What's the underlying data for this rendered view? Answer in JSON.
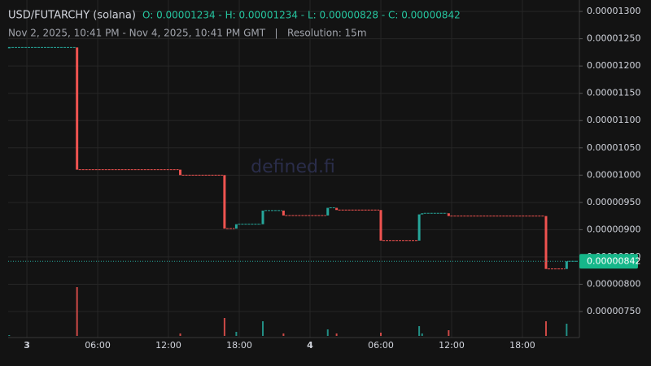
{
  "chart_data": {
    "type": "candlestick",
    "title": "USD/FUTARCHY (solana)",
    "ohlc_legend": "O: 0.00001234 - H: 0.00001234 - L: 0.00000828 - C: 0.00000842",
    "subtitle": "Nov 2, 2025, 10:41 PM - Nov 4, 2025, 10:41 PM GMT   |   Resolution: 15m",
    "watermark": "defined.fi",
    "up_color": "#26a69a",
    "down_color": "#ef5350",
    "x": [
      -1.5,
      4.25,
      13.0,
      16.75,
      17.75,
      20.0,
      21.75,
      25.5,
      26.25,
      30.0,
      33.25,
      33.5,
      35.75,
      44.0,
      45.75
    ],
    "open": [
      1.234e-05,
      1.234e-05,
      1.01e-05,
      1e-05,
      9.02e-06,
      9.1e-06,
      9.35e-06,
      9.26e-06,
      9.4e-06,
      9.36e-06,
      8.8e-06,
      9.28e-06,
      9.3e-06,
      9.25e-06,
      8.28e-06
    ],
    "close": [
      1.234e-05,
      1.01e-05,
      1e-05,
      9.02e-06,
      9.1e-06,
      9.35e-06,
      9.26e-06,
      9.4e-06,
      9.36e-06,
      8.8e-06,
      9.28e-06,
      9.3e-06,
      9.25e-06,
      8.28e-06,
      8.42e-06
    ],
    "volume": [
      1,
      60,
      3,
      22,
      5,
      18,
      3,
      8,
      3,
      4,
      12,
      3,
      7,
      18,
      15
    ],
    "last_price": {
      "value": 8.42e-06,
      "label": "0.00000842"
    },
    "xlim": [
      -1.59,
      46.83
    ],
    "xticks": [
      {
        "value": 0,
        "label": "3"
      },
      {
        "value": 6,
        "label": "06:00"
      },
      {
        "value": 12,
        "label": "12:00"
      },
      {
        "value": 18,
        "label": "18:00"
      },
      {
        "value": 24,
        "label": "4"
      },
      {
        "value": 30,
        "label": "06:00"
      },
      {
        "value": 36,
        "label": "12:00"
      },
      {
        "value": 42,
        "label": "18:00"
      }
    ],
    "ylim": [
      7.023e-06,
      1.321e-05
    ],
    "yticks": [
      {
        "value": 1.3e-05,
        "label": "0.00001300"
      },
      {
        "value": 1.25e-05,
        "label": "0.00001250"
      },
      {
        "value": 1.2e-05,
        "label": "0.00001200"
      },
      {
        "value": 1.15e-05,
        "label": "0.00001150"
      },
      {
        "value": 1.1e-05,
        "label": "0.00001100"
      },
      {
        "value": 1.05e-05,
        "label": "0.00001050"
      },
      {
        "value": 1e-05,
        "label": "0.00001000"
      },
      {
        "value": 9.5e-06,
        "label": "0.00000950"
      },
      {
        "value": 9e-06,
        "label": "0.00000900"
      },
      {
        "value": 8.5e-06,
        "label": "0.00000850"
      },
      {
        "value": 8e-06,
        "label": "0.00000800"
      },
      {
        "value": 7.5e-06,
        "label": "0.00000750"
      }
    ],
    "grid": true
  }
}
